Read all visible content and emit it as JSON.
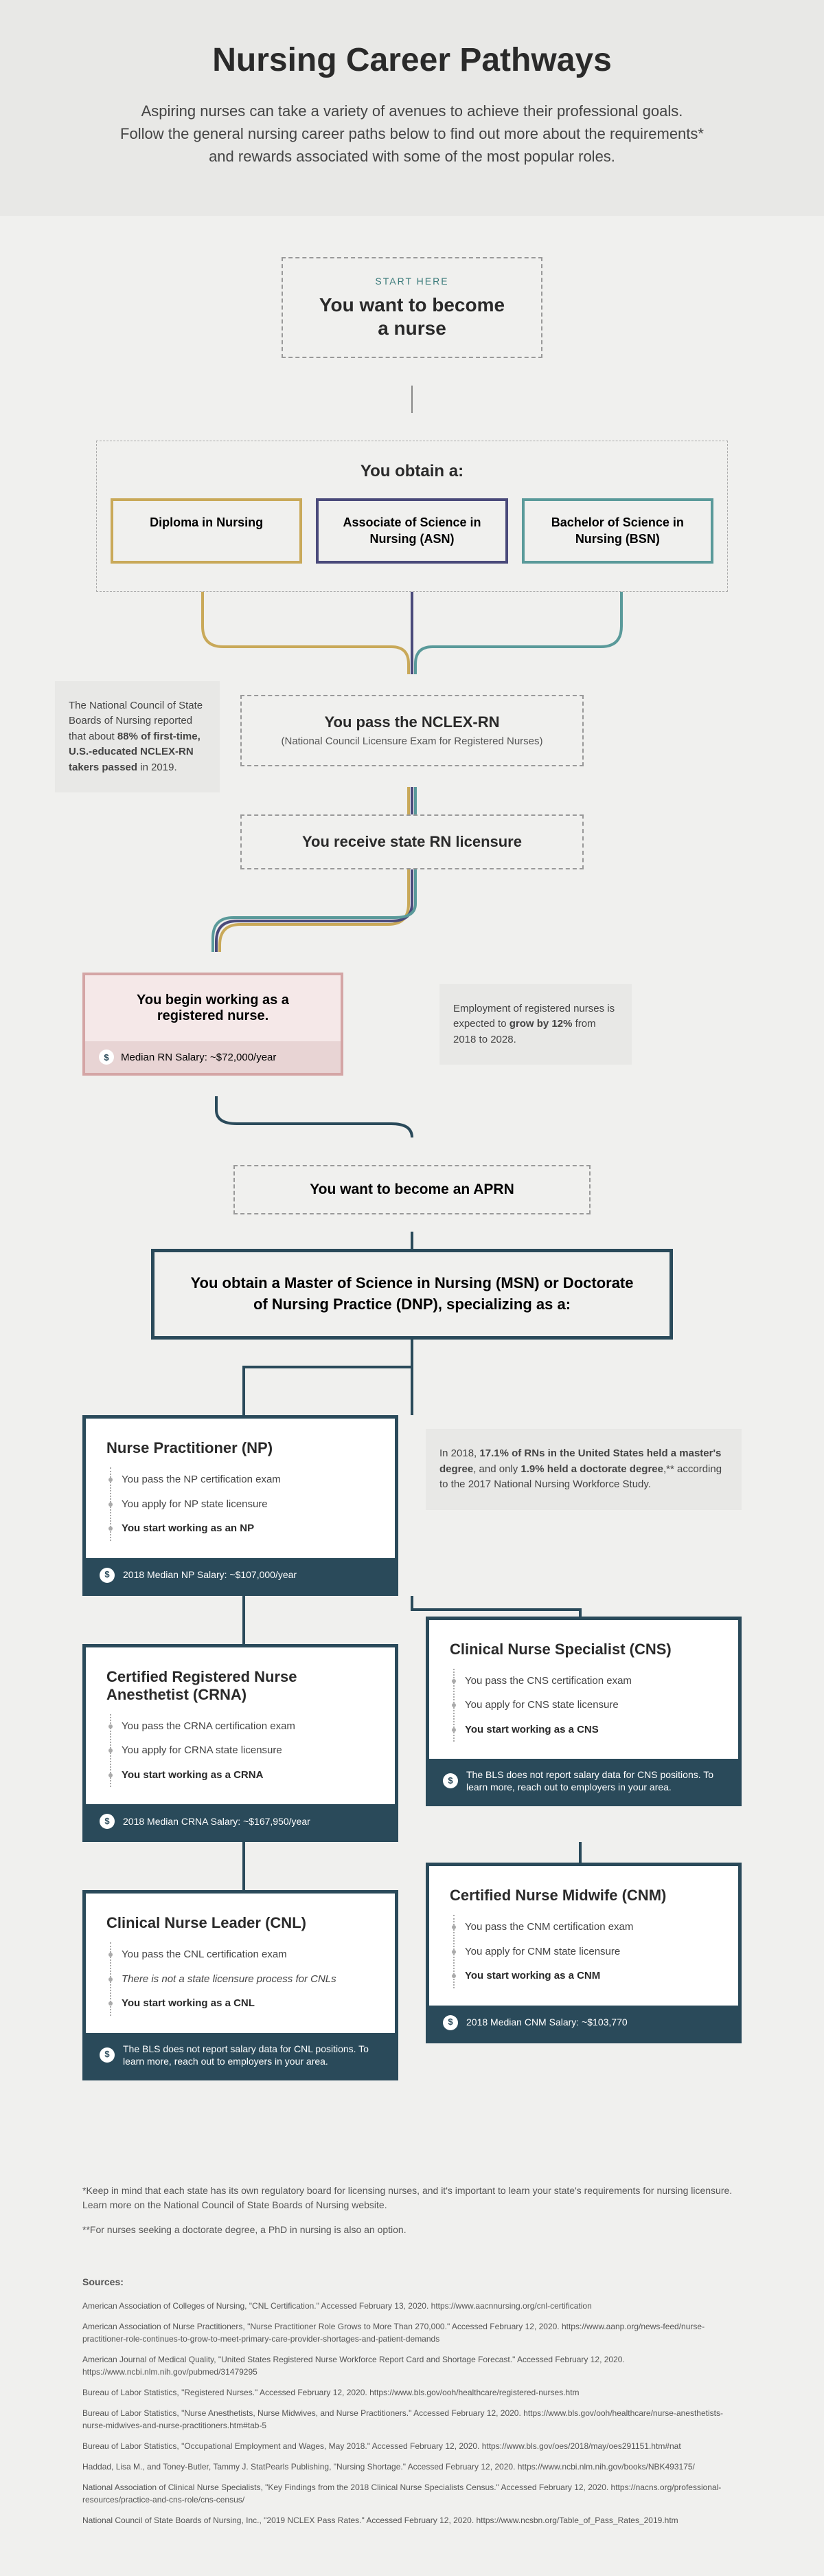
{
  "header": {
    "title": "Nursing Career Pathways",
    "subtitle": "Aspiring nurses can take a variety of avenues to achieve their professional goals. Follow the general nursing career paths below to find out more about the requirements* and rewards associated with some of the most popular roles."
  },
  "start": {
    "label": "START HERE",
    "text": "You want to become a nurse"
  },
  "obtain": {
    "title": "You obtain a:",
    "degrees": [
      {
        "label": "Diploma in Nursing",
        "color": "#c9a959"
      },
      {
        "label": "Associate of Science in Nursing (ASN)",
        "color": "#4a4a7a"
      },
      {
        "label": "Bachelor of Science in Nursing (BSN)",
        "color": "#5a9a9a"
      }
    ]
  },
  "nclex": {
    "main": "You pass the NCLEX-RN",
    "sub": "(National Council Licensure Exam for Registered Nurses)"
  },
  "licensure": {
    "main": "You receive state RN licensure"
  },
  "fact_nclex": "The National Council of State Boards of Nursing reported that about <b>88% of first-time, U.S.-educated NCLEX-RN takers passed</b> in 2019.",
  "rn_box": {
    "title": "You begin working as a registered nurse.",
    "salary": "Median RN Salary: ~$72,000/year"
  },
  "fact_employment": "Employment of registered nurses is expected to <b>grow by 12%</b> from 2018 to 2028.",
  "aprn": "You want to become an APRN",
  "msn": "You obtain a Master of Science in Nursing (MSN) or Doctorate of Nursing Practice (DNP), specializing as a:",
  "fact_degree": "In 2018, <b>17.1% of RNs in the United States held a master's degree</b>, and only <b>1.9% held a doctorate degree</b>,** according to the 2017 National Nursing Workforce Study.",
  "specializations": {
    "np": {
      "title": "Nurse Practitioner (NP)",
      "steps": [
        {
          "text": "You pass the NP certification exam"
        },
        {
          "text": "You apply for NP state licensure"
        },
        {
          "text": "You start working as an NP",
          "bold": true
        }
      ],
      "salary": "2018 Median NP Salary: ~$107,000/year"
    },
    "cns": {
      "title": "Clinical Nurse Specialist (CNS)",
      "steps": [
        {
          "text": "You pass the CNS certification exam"
        },
        {
          "text": "You apply for CNS state licensure"
        },
        {
          "text": "You start working as a CNS",
          "bold": true
        }
      ],
      "salary": "The BLS does not report salary data for CNS positions. To learn more, reach out to employers in your area."
    },
    "crna": {
      "title": "Certified Registered Nurse Anesthetist (CRNA)",
      "steps": [
        {
          "text": "You pass the CRNA certification exam"
        },
        {
          "text": "You apply for CRNA state licensure"
        },
        {
          "text": "You start working as a CRNA",
          "bold": true
        }
      ],
      "salary": "2018 Median CRNA Salary: ~$167,950/year"
    },
    "cnm": {
      "title": "Certified Nurse Midwife (CNM)",
      "steps": [
        {
          "text": "You pass the CNM certification exam"
        },
        {
          "text": "You apply for CNM state licensure"
        },
        {
          "text": "You start working as a CNM",
          "bold": true
        }
      ],
      "salary": "2018 Median CNM Salary: ~$103,770"
    },
    "cnl": {
      "title": "Clinical Nurse Leader (CNL)",
      "steps": [
        {
          "text": "You pass the CNL certification exam"
        },
        {
          "text": "There is not a state licensure process for CNLs",
          "italic": true
        },
        {
          "text": "You start working as a CNL",
          "bold": true
        }
      ],
      "salary": "The BLS does not report salary data for CNL positions. To learn more, reach out to employers in your area."
    }
  },
  "footnotes": [
    "*Keep in mind that each state has its own regulatory board for licensing nurses, and it's important to learn your state's requirements for nursing licensure. Learn more on the National Council of State Boards of Nursing website.",
    "**For nurses seeking a doctorate degree, a PhD in nursing is also an option."
  ],
  "sources_title": "Sources:",
  "sources": [
    "American Association of Colleges of Nursing, \"CNL Certification.\" Accessed February 13, 2020. https://www.aacnnursing.org/cnl-certification",
    "American Association of Nurse Practitioners, \"Nurse Practitioner Role Grows to More Than 270,000.\" Accessed February 12, 2020. https://www.aanp.org/news-feed/nurse-practitioner-role-continues-to-grow-to-meet-primary-care-provider-shortages-and-patient-demands",
    "American Journal of Medical Quality, \"United States Registered Nurse Workforce Report Card and Shortage Forecast.\" Accessed February 12, 2020. https://www.ncbi.nlm.nih.gov/pubmed/31479295",
    "Bureau of Labor Statistics, \"Registered Nurses.\" Accessed February 12, 2020. https://www.bls.gov/ooh/healthcare/registered-nurses.htm",
    "Bureau of Labor Statistics, \"Nurse Anesthetists, Nurse Midwives, and Nurse Practitioners.\" Accessed February 12, 2020. https://www.bls.gov/ooh/healthcare/nurse-anesthetists-nurse-midwives-and-nurse-practitioners.htm#tab-5",
    "Bureau of Labor Statistics, \"Occupational Employment and Wages, May 2018.\" Accessed February 12, 2020. https://www.bls.gov/oes/2018/may/oes291151.htm#nat",
    "Haddad, Lisa M., and Toney-Butler, Tammy J. StatPearls Publishing, \"Nursing Shortage.\" Accessed February 12, 2020. https://www.ncbi.nlm.nih.gov/books/NBK493175/",
    "National Association of Clinical Nurse Specialists, \"Key Findings from the 2018 Clinical Nurse Specialists Census.\" Accessed February 12, 2020. https://nacns.org/professional-resources/practice-and-cns-role/cns-census/",
    "National Council of State Boards of Nursing, Inc., \"2019 NCLEX Pass Rates.\" Accessed February 12, 2020. https://www.ncsbn.org/Table_of_Pass_Rates_2019.htm"
  ],
  "colors": {
    "yellow": "#c9a959",
    "purple": "#4a4a7a",
    "teal": "#5a9a9a",
    "navy": "#2a4a5a",
    "pink": "#d4a5a5",
    "bg": "#f0f0ee",
    "header_bg": "#e8e8e6"
  }
}
